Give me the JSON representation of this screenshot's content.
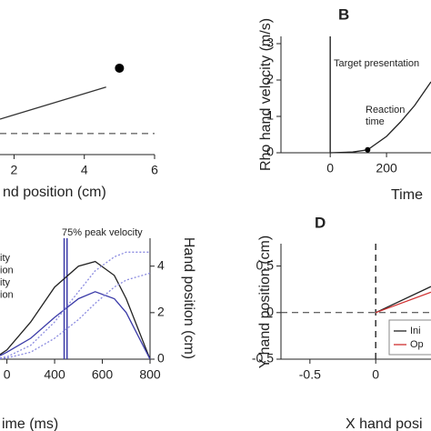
{
  "chart_data": [
    {
      "type": "line",
      "xlabel": "nd position (cm)",
      "xlim": [
        1.6,
        6
      ],
      "ylim": [
        -0.6,
        3.8
      ],
      "xticks": [
        2,
        4,
        6
      ],
      "series": [
        {
          "color": "#333333",
          "x": [
            1.6,
            4.62
          ],
          "values": [
            0.41,
            1.32
          ]
        }
      ],
      "points": {
        "color": "#000000",
        "x": [
          5
        ],
        "values": [
          1.86
        ]
      },
      "hlines": [
        {
          "value": 0,
          "style": "dashed",
          "color": "#333333"
        }
      ]
    },
    {
      "type": "line",
      "title": "B",
      "ylabel": "Rho hand velocity (m/s)",
      "xlabel": "Time",
      "xlim": [
        -175,
        358
      ],
      "ylim": [
        0,
        3.2
      ],
      "xticks": [
        0,
        200,
        {
          "value": 400,
          "label": "4"
        }
      ],
      "yticks": [
        0,
        1,
        2,
        3
      ],
      "series": [
        {
          "color": "#222222",
          "x": [
            0,
            80,
            133,
            200,
            250,
            300,
            358
          ],
          "values": [
            0,
            0.02,
            0.08,
            0.45,
            0.85,
            1.3,
            1.95
          ]
        }
      ],
      "points": {
        "color": "#000000",
        "x": [
          133
        ],
        "values": [
          0.08
        ]
      },
      "vlines": [
        {
          "value": 0,
          "color": "#333333"
        }
      ],
      "annotations": [
        {
          "text": [
            "Target presentation"
          ]
        },
        {
          "text": [
            "Reaction",
            "time"
          ]
        }
      ]
    },
    {
      "type": "line",
      "xlabel": "ime (ms)",
      "ylabel": "Hand position (cm)",
      "xlim": [
        171,
        800
      ],
      "ylim": [
        0,
        5.2
      ],
      "xticks": [
        {
          "value": 200,
          "label": "0"
        },
        400,
        600,
        800
      ],
      "yticks": [
        0,
        2,
        4
      ],
      "legend_labels": [
        "ity",
        "ion",
        "ity",
        "ion"
      ],
      "series": [
        {
          "color": "#222222",
          "style": "solid",
          "x": [
            171,
            200,
            300,
            400,
            500,
            570,
            650,
            700,
            800
          ],
          "values": [
            0.2,
            0.4,
            1.6,
            3.1,
            4.0,
            4.2,
            3.6,
            2.6,
            0
          ]
        },
        {
          "color": "#3a3aa8",
          "style": "solid",
          "x": [
            171,
            200,
            300,
            400,
            500,
            570,
            650,
            700,
            800
          ],
          "values": [
            0.15,
            0.3,
            0.9,
            1.8,
            2.6,
            2.9,
            2.6,
            2.0,
            0
          ]
        },
        {
          "color": "#8a8ae0",
          "style": "dotted",
          "x": [
            171,
            200,
            300,
            400,
            500,
            570,
            650,
            700,
            800
          ],
          "values": [
            0.05,
            0.1,
            0.6,
            1.6,
            2.9,
            3.8,
            4.4,
            4.6,
            4.6
          ]
        },
        {
          "color": "#8a8ae0",
          "style": "dotted",
          "x": [
            171,
            200,
            300,
            400,
            500,
            570,
            650,
            700,
            800
          ],
          "values": [
            0.02,
            0.05,
            0.3,
            0.9,
            1.7,
            2.4,
            3.1,
            3.4,
            3.7
          ]
        }
      ],
      "vlines": [
        {
          "value": 440,
          "color": "#3a3aa8"
        },
        {
          "value": 452,
          "color": "#3a3aa8"
        }
      ],
      "annotations": [
        {
          "text": [
            "75% peak velocity"
          ]
        }
      ]
    },
    {
      "type": "line",
      "title": "D",
      "ylabel": "Y hand position (cm)",
      "xlabel": "X hand posi",
      "xlim": [
        -0.72,
        0.42
      ],
      "ylim": [
        -0.5,
        0.74
      ],
      "xticks": [
        -0.5,
        0
      ],
      "yticks": [
        -0.5,
        0,
        0.5
      ],
      "series": [
        {
          "name": "Ini",
          "color": "#222222",
          "x": [
            0,
            0.42
          ],
          "values": [
            0,
            0.28
          ]
        },
        {
          "name": "Op",
          "color": "#d03030",
          "x": [
            0,
            0.42
          ],
          "values": [
            0,
            0.22
          ]
        }
      ],
      "hlines": [
        {
          "value": 0,
          "style": "dashed",
          "color": "#333333"
        }
      ],
      "vlines": [
        {
          "value": 0,
          "style": "dashed",
          "color": "#333333"
        }
      ]
    }
  ]
}
